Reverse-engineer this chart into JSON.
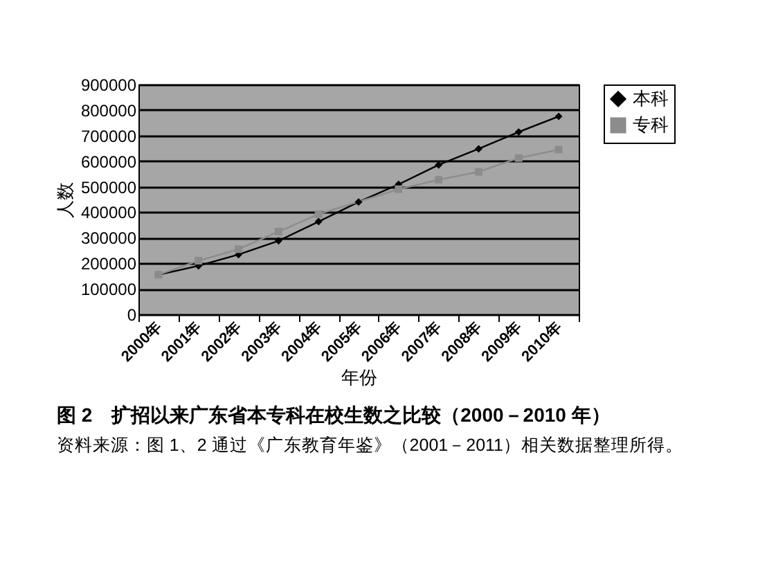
{
  "chart_data": {
    "type": "line",
    "title": "图 2　扩招以来广东省本专科在校生数之比较（2000－2010 年）",
    "xlabel": "年份",
    "ylabel": "人数",
    "categories": [
      "2000年",
      "2001年",
      "2002年",
      "2003年",
      "2004年",
      "2005年",
      "2006年",
      "2007年",
      "2008年",
      "2009年",
      "2010年"
    ],
    "series": [
      {
        "name": "本科",
        "color": "#000000",
        "marker": "diamond",
        "values": [
          155000,
          190000,
          234000,
          288000,
          363000,
          440000,
          509000,
          585000,
          648000,
          714000,
          775000
        ]
      },
      {
        "name": "专科",
        "color": "#8c8c8c",
        "marker": "square",
        "values": [
          155000,
          210000,
          255000,
          324000,
          392000,
          null,
          490000,
          527000,
          558000,
          612000,
          645000
        ]
      }
    ],
    "ylim": [
      0,
      900000
    ],
    "yticks": [
      0,
      100000,
      200000,
      300000,
      400000,
      500000,
      600000,
      700000,
      800000,
      900000
    ],
    "grid": "y",
    "legend": "right",
    "annotations": [
      "资料来源：图 1、2 通过《广东教育年鉴》（2001－2011）相关数据整理所得。"
    ]
  }
}
